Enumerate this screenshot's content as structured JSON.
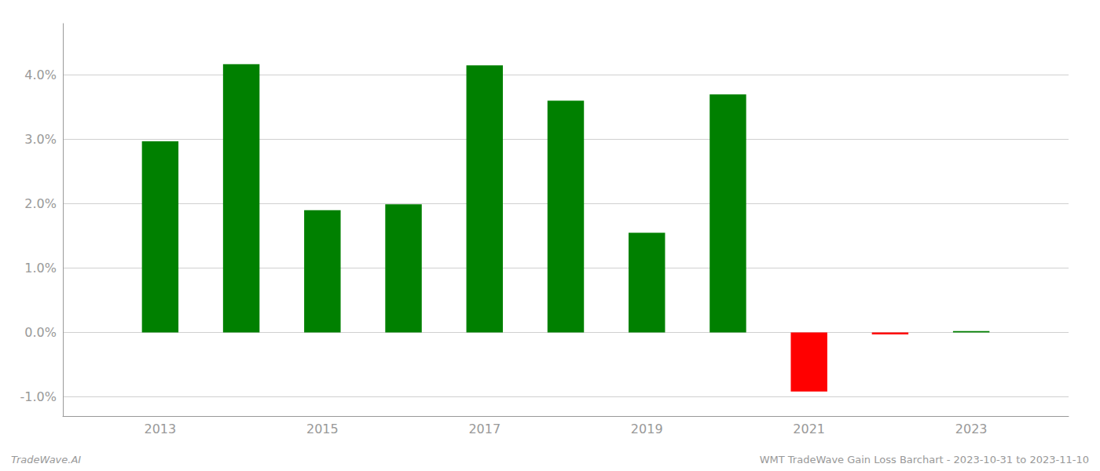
{
  "chart_data": {
    "type": "bar",
    "x": [
      2013,
      2014,
      2015,
      2016,
      2017,
      2018,
      2019,
      2020,
      2021,
      2022,
      2023
    ],
    "values": [
      0.0297,
      0.0417,
      0.019,
      0.0199,
      0.0415,
      0.036,
      0.0155,
      0.037,
      -0.0092,
      -0.0003,
      0.0002
    ],
    "colors": [
      "#008000",
      "#008000",
      "#008000",
      "#008000",
      "#008000",
      "#008000",
      "#008000",
      "#008000",
      "#ff0000",
      "#ff0000",
      "#008000"
    ],
    "xlim": [
      2011.8,
      2024.2
    ],
    "xticks": [
      2013,
      2015,
      2017,
      2019,
      2021,
      2023
    ],
    "ylim": [
      -0.013,
      0.048
    ],
    "yticks": [
      {
        "value": -0.01,
        "label": "-1.0%"
      },
      {
        "value": 0.0,
        "label": "0.0%"
      },
      {
        "value": 0.01,
        "label": "1.0%"
      },
      {
        "value": 0.02,
        "label": "2.0%"
      },
      {
        "value": 0.03,
        "label": "3.0%"
      },
      {
        "value": 0.04,
        "label": "4.0%"
      }
    ],
    "grid": true,
    "annotations": [
      "TradeWave.AI",
      "WMT TradeWave Gain Loss Barchart - 2023-10-31 to 2023-11-10"
    ]
  }
}
